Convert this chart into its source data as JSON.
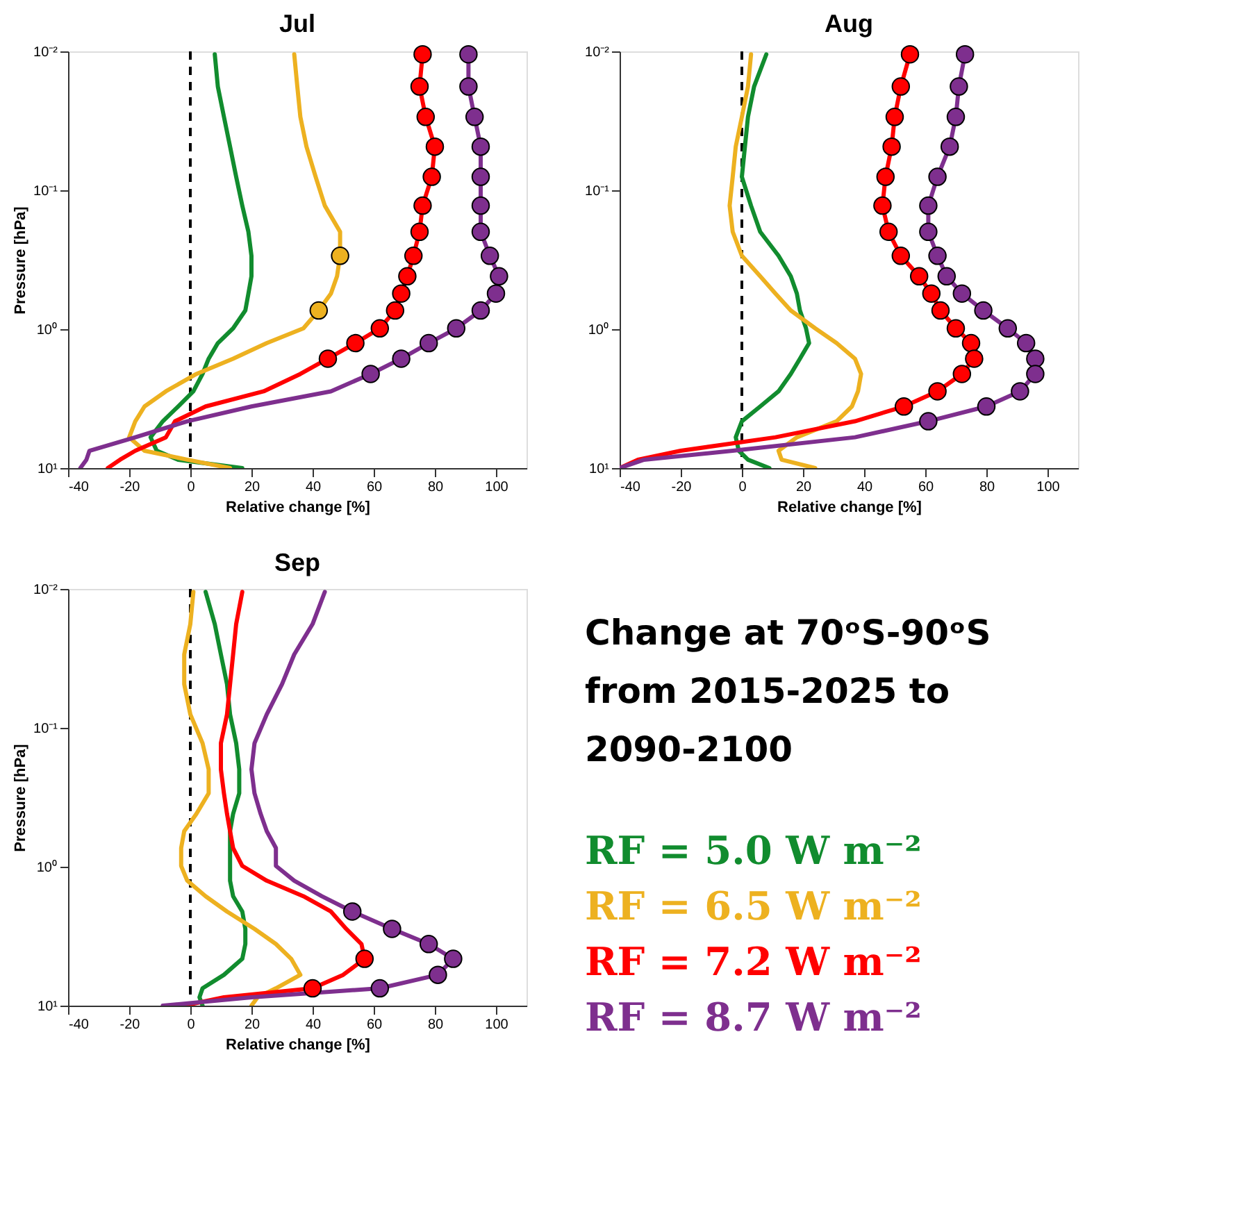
{
  "chart_data": [
    {
      "type": "line",
      "title": "Jul",
      "xlabel": "Relative change [%]",
      "ylabel": "Pressure [hPa]",
      "log": "y",
      "grid": false,
      "legend": false,
      "xlim": [
        -40,
        110
      ],
      "xticks": [
        -40,
        -20,
        0,
        20,
        40,
        60,
        80,
        100
      ],
      "ylim": [
        10,
        0.01
      ],
      "yticks": [
        {
          "value": 0.01,
          "label": "10⁻²"
        },
        {
          "value": 0.1,
          "label": "10⁻¹"
        },
        {
          "value": 1,
          "label": "10⁰"
        },
        {
          "value": 10,
          "label": "10¹"
        }
      ],
      "ref_lines": [
        {
          "axis": "x",
          "value": 0,
          "color": "#000000",
          "line_style": "dashed"
        }
      ],
      "series": [
        {
          "type": "line",
          "color": "#118c2e",
          "x": [
            8,
            9,
            11,
            13,
            15,
            17,
            19,
            20,
            20,
            19,
            18,
            14,
            9,
            6,
            4,
            1,
            -4,
            -9,
            -13,
            -11,
            -4,
            17
          ],
          "values": [
            0.0105,
            0.0179,
            0.0296,
            0.0485,
            0.08,
            0.129,
            0.199,
            0.296,
            0.416,
            0.554,
            0.733,
            0.986,
            1.26,
            1.63,
            2.1,
            2.8,
            3.6,
            4.6,
            6.0,
            7.5,
            8.7,
            10
          ]
        },
        {
          "type": "line",
          "color": "#edb120",
          "x": [
            34,
            35,
            36,
            38,
            41,
            44,
            49,
            49,
            48,
            46,
            42,
            37,
            25,
            14,
            2,
            -8,
            -15,
            -18,
            -20,
            -15,
            -1,
            13
          ],
          "values": [
            0.0105,
            0.0179,
            0.0296,
            0.0485,
            0.08,
            0.129,
            0.199,
            0.296,
            0.416,
            0.554,
            0.733,
            0.986,
            1.26,
            1.63,
            2.1,
            2.8,
            3.6,
            4.6,
            6.0,
            7.5,
            8.7,
            10
          ]
        },
        {
          "type": "line",
          "color": "#ff0000",
          "x": [
            76,
            75,
            77,
            80,
            79,
            76,
            75,
            73,
            71,
            69,
            67,
            62,
            54,
            45,
            36,
            24,
            5,
            -5,
            -8,
            -18,
            -23,
            -27
          ],
          "values": [
            0.0105,
            0.0179,
            0.0296,
            0.0485,
            0.08,
            0.129,
            0.199,
            0.296,
            0.416,
            0.554,
            0.733,
            0.986,
            1.26,
            1.63,
            2.1,
            2.8,
            3.6,
            4.6,
            6.0,
            7.5,
            8.7,
            10
          ]
        },
        {
          "type": "line",
          "color": "#7e2f8e",
          "x": [
            91,
            91,
            93,
            95,
            95,
            95,
            95,
            98,
            101,
            100,
            95,
            87,
            78,
            69,
            59,
            46,
            20,
            -1,
            -18,
            -33,
            -34,
            -36
          ],
          "values": [
            0.0105,
            0.0179,
            0.0296,
            0.0485,
            0.08,
            0.129,
            0.199,
            0.296,
            0.416,
            0.554,
            0.733,
            0.986,
            1.26,
            1.63,
            2.1,
            2.8,
            3.6,
            4.6,
            6.0,
            7.5,
            8.7,
            10
          ]
        },
        {
          "type": "scatter",
          "marker": "circle",
          "color": "#edb120",
          "x": [
            49,
            42
          ],
          "values": [
            0.296,
            0.733
          ]
        },
        {
          "type": "scatter",
          "marker": "circle",
          "color": "#ff0000",
          "x": [
            76,
            75,
            77,
            80,
            79,
            76,
            75,
            73,
            71,
            69,
            67,
            62,
            54,
            45
          ],
          "values": [
            0.0105,
            0.0179,
            0.0296,
            0.0485,
            0.08,
            0.129,
            0.199,
            0.296,
            0.416,
            0.554,
            0.733,
            0.986,
            1.26,
            1.63
          ]
        },
        {
          "type": "scatter",
          "marker": "circle",
          "color": "#7e2f8e",
          "x": [
            91,
            91,
            93,
            95,
            95,
            95,
            95,
            98,
            101,
            100,
            95,
            87,
            78,
            69,
            59
          ],
          "values": [
            0.0105,
            0.0179,
            0.0296,
            0.0485,
            0.08,
            0.129,
            0.199,
            0.296,
            0.416,
            0.554,
            0.733,
            0.986,
            1.26,
            1.63,
            2.1
          ]
        }
      ]
    },
    {
      "type": "line",
      "title": "Aug",
      "xlabel": "Relative change [%]",
      "ylabel": null,
      "log": "y",
      "grid": false,
      "legend": false,
      "xlim": [
        -40,
        110
      ],
      "xticks": [
        -40,
        -20,
        0,
        20,
        40,
        60,
        80,
        100
      ],
      "ylim": [
        10,
        0.01
      ],
      "yticks": [
        {
          "value": 0.01,
          "label": "10⁻²"
        },
        {
          "value": 0.1,
          "label": "10⁻¹"
        },
        {
          "value": 1,
          "label": "10⁰"
        },
        {
          "value": 10,
          "label": "10¹"
        }
      ],
      "ref_lines": [
        {
          "axis": "x",
          "value": 0,
          "color": "#000000",
          "line_style": "dashed"
        }
      ],
      "series": [
        {
          "type": "line",
          "color": "#118c2e",
          "x": [
            8,
            4,
            2,
            1,
            0,
            3,
            6,
            12,
            16,
            18,
            19,
            21,
            22,
            19,
            16,
            12,
            6,
            0,
            -2,
            -1,
            2,
            9
          ],
          "values": [
            0.0105,
            0.0179,
            0.0296,
            0.0485,
            0.08,
            0.129,
            0.199,
            0.296,
            0.416,
            0.554,
            0.733,
            0.986,
            1.26,
            1.63,
            2.1,
            2.8,
            3.6,
            4.6,
            6.0,
            7.5,
            8.7,
            10
          ]
        },
        {
          "type": "line",
          "color": "#edb120",
          "x": [
            3,
            2,
            0,
            -2,
            -3,
            -4,
            -3,
            0,
            6,
            11,
            16,
            24,
            31,
            37,
            39,
            38,
            36,
            31,
            18,
            12,
            13,
            24
          ],
          "values": [
            0.0105,
            0.0179,
            0.0296,
            0.0485,
            0.08,
            0.129,
            0.199,
            0.296,
            0.416,
            0.554,
            0.733,
            0.986,
            1.26,
            1.63,
            2.1,
            2.8,
            3.6,
            4.6,
            6.0,
            7.5,
            8.7,
            10
          ]
        },
        {
          "type": "line",
          "color": "#ff0000",
          "x": [
            55,
            52,
            50,
            49,
            47,
            46,
            48,
            52,
            58,
            62,
            65,
            70,
            75,
            76,
            72,
            64,
            53,
            37,
            11,
            -20,
            -34,
            -40
          ],
          "values": [
            0.0105,
            0.0179,
            0.0296,
            0.0485,
            0.08,
            0.129,
            0.199,
            0.296,
            0.416,
            0.554,
            0.733,
            0.986,
            1.26,
            1.63,
            2.1,
            2.8,
            3.6,
            4.6,
            6.0,
            7.5,
            8.7,
            10
          ]
        },
        {
          "type": "line",
          "color": "#7e2f8e",
          "x": [
            73,
            71,
            70,
            68,
            64,
            61,
            61,
            64,
            67,
            72,
            79,
            87,
            93,
            96,
            96,
            91,
            80,
            61,
            37,
            -3,
            -32,
            -40
          ],
          "values": [
            0.0105,
            0.0179,
            0.0296,
            0.0485,
            0.08,
            0.129,
            0.199,
            0.296,
            0.416,
            0.554,
            0.733,
            0.986,
            1.26,
            1.63,
            2.1,
            2.8,
            3.6,
            4.6,
            6.0,
            7.5,
            8.7,
            10
          ]
        },
        {
          "type": "scatter",
          "marker": "circle",
          "color": "#ff0000",
          "x": [
            55,
            52,
            50,
            49,
            47,
            46,
            48,
            52,
            58,
            62,
            65,
            70,
            75,
            76,
            72,
            64,
            53
          ],
          "values": [
            0.0105,
            0.0179,
            0.0296,
            0.0485,
            0.08,
            0.129,
            0.199,
            0.296,
            0.416,
            0.554,
            0.733,
            0.986,
            1.26,
            1.63,
            2.1,
            2.8,
            3.6
          ]
        },
        {
          "type": "scatter",
          "marker": "circle",
          "color": "#7e2f8e",
          "x": [
            73,
            71,
            70,
            68,
            64,
            61,
            61,
            64,
            67,
            72,
            79,
            87,
            93,
            96,
            96,
            91,
            80,
            61
          ],
          "values": [
            0.0105,
            0.0179,
            0.0296,
            0.0485,
            0.08,
            0.129,
            0.199,
            0.296,
            0.416,
            0.554,
            0.733,
            0.986,
            1.26,
            1.63,
            2.1,
            2.8,
            3.6,
            4.6
          ]
        }
      ]
    },
    {
      "type": "line",
      "title": "Sep",
      "xlabel": "Relative change [%]",
      "ylabel": "Pressure [hPa]",
      "log": "y",
      "grid": false,
      "legend": "right",
      "xlim": [
        -40,
        110
      ],
      "xticks": [
        -40,
        -20,
        0,
        20,
        40,
        60,
        80,
        100
      ],
      "ylim": [
        10,
        0.01
      ],
      "yticks": [
        {
          "value": 0.01,
          "label": "10⁻²"
        },
        {
          "value": 0.1,
          "label": "10⁻¹"
        },
        {
          "value": 1,
          "label": "10⁰"
        },
        {
          "value": 10,
          "label": "10¹"
        }
      ],
      "ref_lines": [
        {
          "axis": "x",
          "value": 0,
          "color": "#000000",
          "line_style": "dashed"
        }
      ],
      "series": [
        {
          "name": "RF = 5.0 W m⁻²",
          "type": "line",
          "color": "#118c2e",
          "x": [
            5,
            8,
            10,
            12,
            13,
            15,
            16,
            16,
            14,
            13,
            13,
            13,
            13,
            14,
            17,
            18,
            18,
            17,
            11,
            4,
            3,
            4
          ],
          "values": [
            0.0105,
            0.0179,
            0.0296,
            0.0485,
            0.08,
            0.129,
            0.199,
            0.296,
            0.416,
            0.554,
            0.733,
            0.986,
            1.26,
            1.63,
            2.1,
            2.8,
            3.6,
            4.6,
            6.0,
            7.5,
            8.7,
            10
          ]
        },
        {
          "name": "RF = 6.5 W m⁻²",
          "type": "line",
          "color": "#edb120",
          "x": [
            1,
            0,
            -2,
            -2,
            0,
            4,
            6,
            6,
            2,
            -2,
            -3,
            -3,
            -1,
            5,
            12,
            21,
            28,
            33,
            36,
            28,
            22,
            20
          ],
          "values": [
            0.0105,
            0.0179,
            0.0296,
            0.0485,
            0.08,
            0.129,
            0.199,
            0.296,
            0.416,
            0.554,
            0.733,
            0.986,
            1.26,
            1.63,
            2.1,
            2.8,
            3.6,
            4.6,
            6.0,
            7.5,
            8.7,
            10
          ]
        },
        {
          "name": "RF = 7.2 W m⁻²",
          "type": "line",
          "color": "#ff0000",
          "x": [
            17,
            15,
            14,
            13,
            12,
            10,
            10,
            11,
            12,
            13,
            14,
            17,
            25,
            37,
            46,
            51,
            56,
            57,
            50,
            40,
            11,
            -2
          ],
          "values": [
            0.0105,
            0.0179,
            0.0296,
            0.0485,
            0.08,
            0.129,
            0.199,
            0.296,
            0.416,
            0.554,
            0.733,
            0.986,
            1.26,
            1.63,
            2.1,
            2.8,
            3.6,
            4.6,
            6.0,
            7.5,
            8.7,
            10
          ]
        },
        {
          "name": "RF = 8.7 W m⁻²",
          "type": "line",
          "color": "#7e2f8e",
          "x": [
            44,
            40,
            34,
            30,
            25,
            21,
            20,
            21,
            23,
            25,
            28,
            28,
            34,
            43,
            53,
            66,
            78,
            86,
            81,
            62,
            20,
            -9
          ],
          "values": [
            0.0105,
            0.0179,
            0.0296,
            0.0485,
            0.08,
            0.129,
            0.199,
            0.296,
            0.416,
            0.554,
            0.733,
            0.986,
            1.26,
            1.63,
            2.1,
            2.8,
            3.6,
            4.6,
            6.0,
            7.5,
            8.7,
            10
          ]
        },
        {
          "type": "scatter",
          "marker": "circle",
          "color": "#ff0000",
          "x": [
            57,
            40
          ],
          "values": [
            4.6,
            7.5
          ]
        },
        {
          "type": "scatter",
          "marker": "circle",
          "color": "#7e2f8e",
          "x": [
            53,
            66,
            78,
            86,
            81,
            62
          ],
          "values": [
            2.1,
            2.8,
            3.6,
            4.6,
            6.0,
            7.5
          ]
        }
      ]
    },
    {
      "type": "other",
      "annotations": [
        "Change at 70ᵒS-90ᵒS from 2015-2025 to 2090-2100"
      ]
    }
  ]
}
